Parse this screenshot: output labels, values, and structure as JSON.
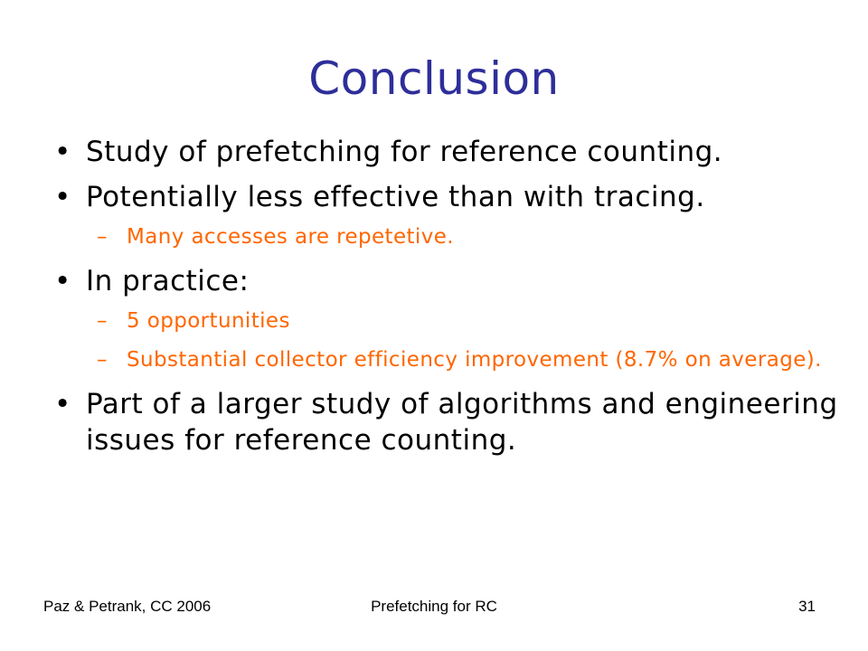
{
  "slide": {
    "title": "Conclusion",
    "bullets": [
      {
        "text": "Study of prefetching for reference counting."
      },
      {
        "text": "Potentially less effective than with tracing.",
        "subitems": [
          "Many accesses are repetetive."
        ]
      },
      {
        "text": "In practice:",
        "subitems": [
          "5 opportunities",
          "Substantial collector efficiency improvement (8.7% on average)."
        ]
      },
      {
        "text": "Part of a larger study of algorithms and engineering issues for reference counting."
      }
    ],
    "bullet_glyph": "•",
    "sub_glyph": "–"
  },
  "footer": {
    "left": "Paz & Petrank, CC 2006",
    "center": "Prefetching for RC",
    "page_number": "31"
  },
  "colors": {
    "title": "#2e2e9a",
    "subitem": "#ff6600",
    "text": "#000000"
  }
}
